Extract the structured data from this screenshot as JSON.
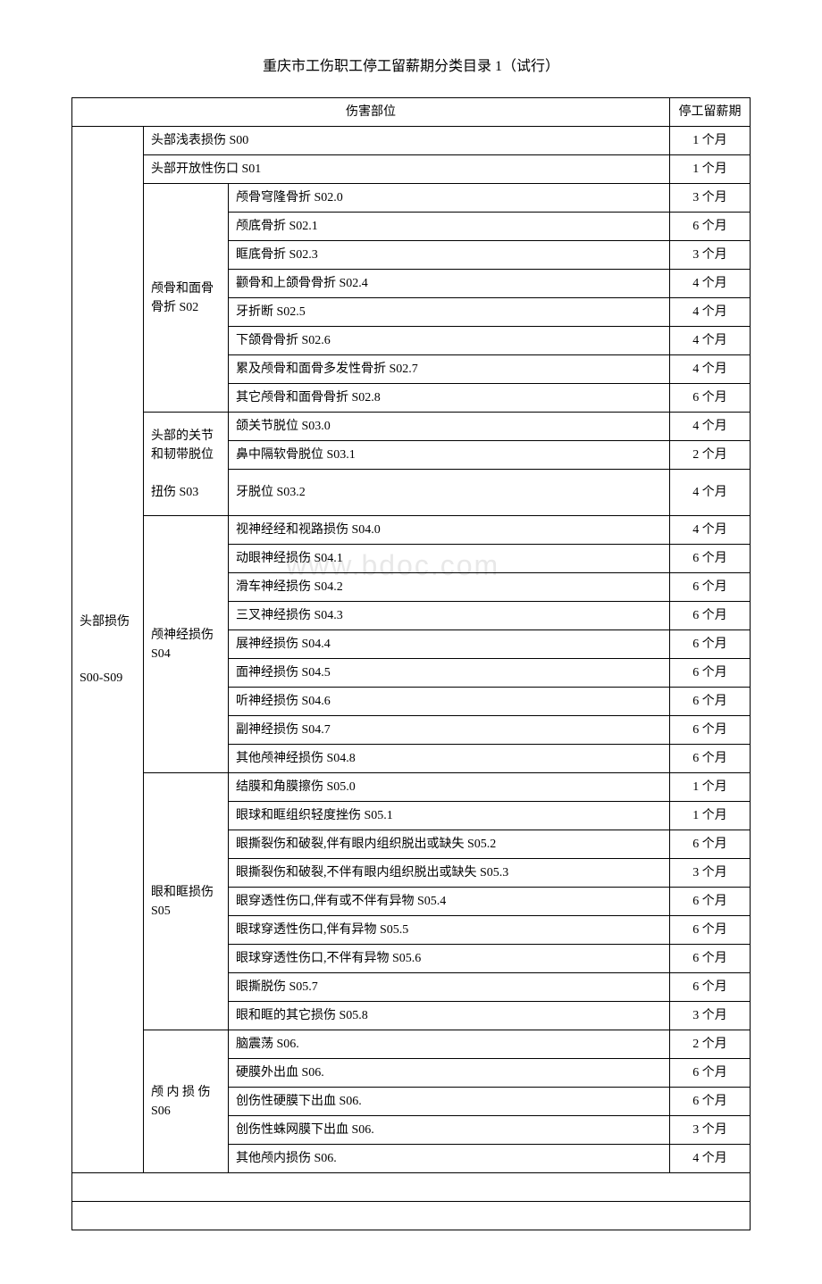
{
  "title": "重庆市工伤职工停工留薪期分类目录 1（试行）",
  "watermark": "www.bdoc.com",
  "header": {
    "injury_part": "伤害部位",
    "period": "停工留薪期"
  },
  "main_category": "头部损伤\n\n\nS00-S09",
  "rows": [
    {
      "sub": "",
      "subspan": 0,
      "detail": "头部浅表损伤 S00",
      "colspan": 2,
      "period": "1 个月"
    },
    {
      "sub": "",
      "subspan": 0,
      "detail": "头部开放性伤口 S01",
      "colspan": 2,
      "period": "1 个月"
    },
    {
      "sub": "颅骨和面骨骨折 S02",
      "subspan": 8,
      "detail": "颅骨穹隆骨折 S02.0",
      "period": "3 个月"
    },
    {
      "detail": "颅底骨折 S02.1",
      "period": "6 个月"
    },
    {
      "detail": "眶底骨折 S02.3",
      "period": "3 个月"
    },
    {
      "detail": "颧骨和上颌骨骨折 S02.4",
      "period": "4 个月"
    },
    {
      "detail": "牙折断 S02.5",
      "period": "4 个月"
    },
    {
      "detail": "下颌骨骨折 S02.6",
      "period": "4 个月"
    },
    {
      "detail": "累及颅骨和面骨多发性骨折 S02.7",
      "period": "4 个月"
    },
    {
      "detail": "其它颅骨和面骨骨折 S02.8",
      "period": "6 个月"
    },
    {
      "sub": "头部的关节和韧带脱位\n\n扭伤 S03",
      "subspan": 3,
      "detail": "颌关节脱位 S03.0",
      "period": "4 个月"
    },
    {
      "detail": "鼻中隔软骨脱位 S03.1",
      "period": "2 个月"
    },
    {
      "detail": "牙脱位 S03.2",
      "period": "4 个月",
      "tall": true
    },
    {
      "sub": "颅神经损伤 S04",
      "subspan": 9,
      "detail": "视神经经和视路损伤 S04.0",
      "period": "4 个月"
    },
    {
      "detail": "动眼神经损伤 S04.1",
      "period": "6 个月"
    },
    {
      "detail": "滑车神经损伤 S04.2",
      "period": "6 个月"
    },
    {
      "detail": "三叉神经损伤 S04.3",
      "period": "6 个月"
    },
    {
      "detail": "展神经损伤 S04.4",
      "period": "6 个月"
    },
    {
      "detail": "面神经损伤 S04.5",
      "period": "6 个月"
    },
    {
      "detail": "听神经损伤 S04.6",
      "period": "6 个月"
    },
    {
      "detail": "副神经损伤 S04.7",
      "period": "6 个月"
    },
    {
      "detail": "其他颅神经损伤 S04.8",
      "period": "6 个月"
    },
    {
      "sub": "眼和眶损伤 S05",
      "subspan": 9,
      "detail": "结膜和角膜擦伤 S05.0",
      "period": "1 个月"
    },
    {
      "detail": "眼球和眶组织轻度挫伤 S05.1",
      "period": "1 个月"
    },
    {
      "detail": "眼撕裂伤和破裂,伴有眼内组织脱出或缺失 S05.2",
      "period": "6 个月"
    },
    {
      "detail": "眼撕裂伤和破裂,不伴有眼内组织脱出或缺失 S05.3",
      "period": "3 个月"
    },
    {
      "detail": "眼穿透性伤口,伴有或不伴有异物 S05.4",
      "period": "6 个月"
    },
    {
      "detail": "眼球穿透性伤口,伴有异物 S05.5",
      "period": "6 个月"
    },
    {
      "detail": "眼球穿透性伤口,不伴有异物 S05.6",
      "period": "6 个月"
    },
    {
      "detail": "眼撕脱伤 S05.7",
      "period": "6 个月"
    },
    {
      "detail": "眼和眶的其它损伤 S05.8",
      "period": "3 个月"
    },
    {
      "sub": "颅 内 损 伤 S06",
      "subspan": 5,
      "detail": "脑震荡 S06.",
      "period": "2 个月"
    },
    {
      "detail": "硬膜外出血 S06.",
      "period": "6 个月"
    },
    {
      "detail": "创伤性硬膜下出血 S06.",
      "period": "6 个月"
    },
    {
      "detail": "创伤性蛛网膜下出血 S06.",
      "period": "3 个月"
    },
    {
      "detail": "其他颅内损伤 S06.",
      "period": "4 个月"
    }
  ]
}
